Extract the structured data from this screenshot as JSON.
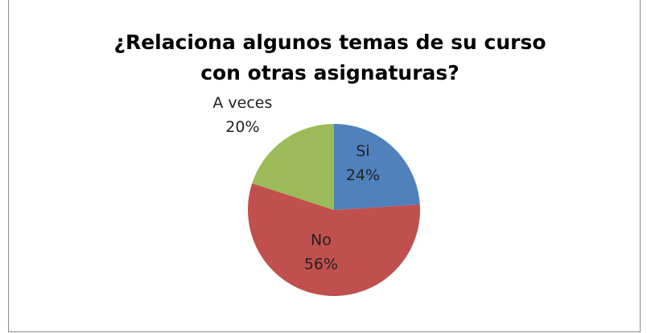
{
  "chart_data": {
    "type": "pie",
    "title": "¿Relaciona algunos temas de su curso con otras asignaturas?",
    "categories": [
      "Si",
      "No",
      "A veces"
    ],
    "values": [
      24,
      56,
      20
    ],
    "value_labels": [
      "24%",
      "56%",
      "20%"
    ],
    "colors": [
      "#4f81bd",
      "#c0504d",
      "#9bbb59"
    ]
  }
}
